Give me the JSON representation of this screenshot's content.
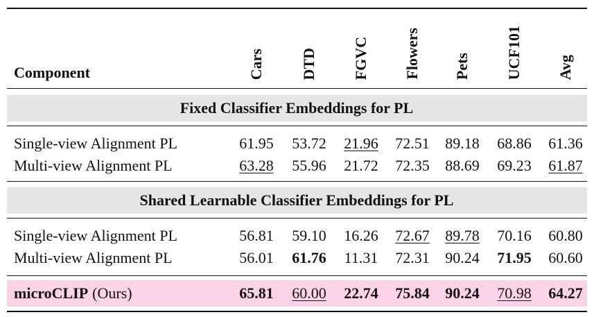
{
  "table": {
    "header": [
      "Component",
      "Cars",
      "DTD",
      "FGVC",
      "Flowers",
      "Pets",
      "UCF101",
      "Avg"
    ],
    "sections": [
      {
        "title": "Fixed Classifier Embeddings for PL",
        "rows": [
          [
            "Single-view Alignment PL",
            "61.95",
            "53.72",
            "21.96",
            "72.51",
            "89.18",
            "68.86",
            "61.36"
          ],
          [
            "Multi-view Alignment PL",
            "63.28",
            "55.96",
            "21.72",
            "72.35",
            "88.69",
            "69.23",
            "61.87"
          ]
        ]
      },
      {
        "title": "Shared Learnable Classifier Embeddings for PL",
        "rows": [
          [
            "Single-view Alignment PL",
            "56.81",
            "59.10",
            "16.26",
            "72.67",
            "89.78",
            "70.16",
            "60.80"
          ],
          [
            "Multi-view Alignment PL",
            "56.01",
            "61.76",
            "11.31",
            "72.31",
            "90.24",
            "71.95",
            "60.60"
          ]
        ]
      }
    ],
    "final": {
      "name": "microCLIP",
      "suffix": "(Ours)",
      "values": [
        "65.81",
        "60.00",
        "22.74",
        "75.84",
        "90.24",
        "70.98",
        "64.27"
      ]
    }
  }
}
